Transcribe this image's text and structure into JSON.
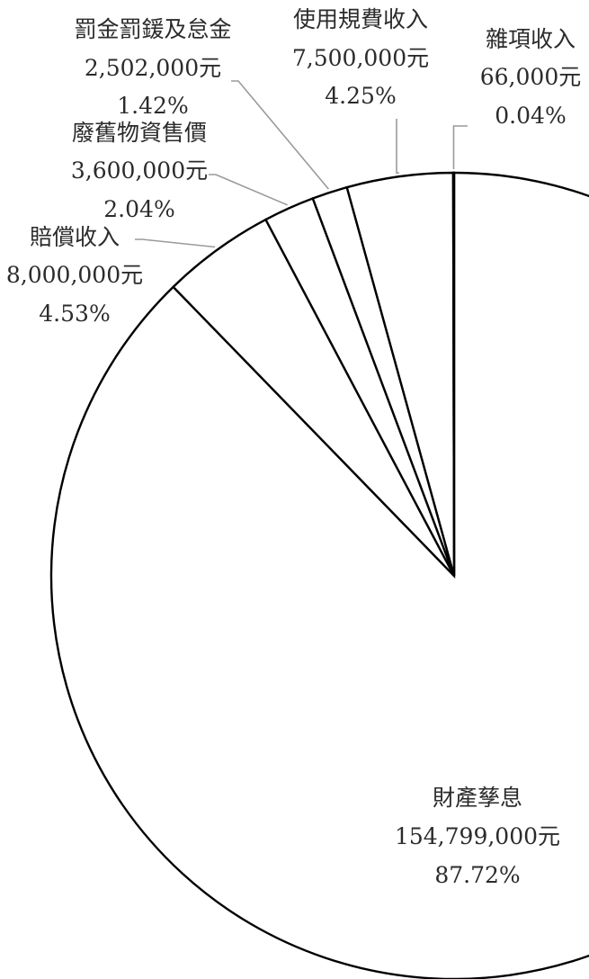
{
  "chart_data": {
    "type": "pie",
    "unit": "元",
    "slices": [
      {
        "label": "財產孳息",
        "value": 154799000,
        "value_text": "154,799,000元",
        "percent_text": "87.72%"
      },
      {
        "label": "賠償收入",
        "value": 8000000,
        "value_text": "8,000,000元",
        "percent_text": "4.53%"
      },
      {
        "label": "廢舊物資售價",
        "value": 3600000,
        "value_text": "3,600,000元",
        "percent_text": "2.04%"
      },
      {
        "label": "罰金罰鍰及怠金",
        "value": 2502000,
        "value_text": "2,502,000元",
        "percent_text": "1.42%"
      },
      {
        "label": "使用規費收入",
        "value": 7500000,
        "value_text": "7,500,000元",
        "percent_text": "4.25%"
      },
      {
        "label": "雜項收入",
        "value": 66000,
        "value_text": "66,000元",
        "percent_text": "0.04%"
      }
    ]
  },
  "colors": {
    "slice_fill": "#ffffff",
    "slice_stroke": "#000000",
    "leader_line": "#9a9a9a",
    "label_text": "#2b2b2b"
  }
}
